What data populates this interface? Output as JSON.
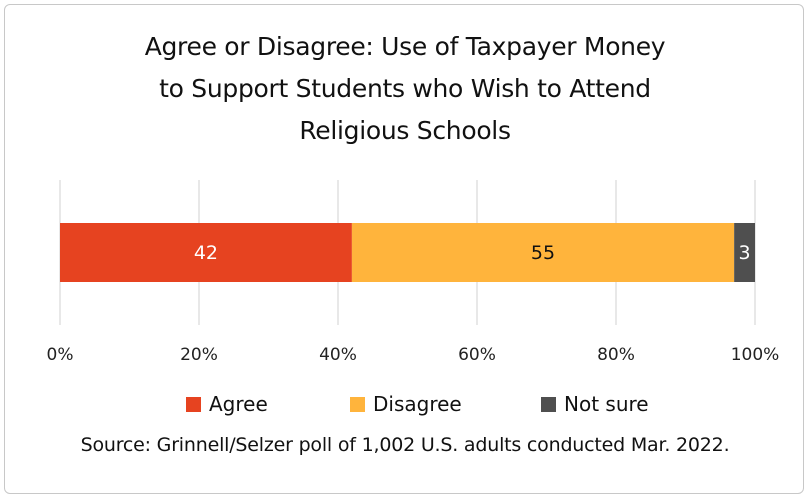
{
  "chart_data": {
    "type": "bar",
    "orientation": "horizontal",
    "stacked": true,
    "title_lines": [
      "Agree or Disagree: Use of Taxpayer Money",
      "to Support Students who Wish to Attend",
      "Religious Schools"
    ],
    "xlim": [
      0,
      100
    ],
    "x_ticks": [
      "0%",
      "20%",
      "40%",
      "60%",
      "80%",
      "100%"
    ],
    "grid": true,
    "legend_position": "bottom",
    "series": [
      {
        "name": "Agree",
        "value": 42,
        "label": "42",
        "color": "#E64320",
        "label_color": "#ffffff"
      },
      {
        "name": "Disagree",
        "value": 55,
        "label": "55",
        "color": "#FFB43C",
        "label_color": "#111111"
      },
      {
        "name": "Not sure",
        "value": 3,
        "label": "3",
        "color": "#4F4F4F",
        "label_color": "#ffffff"
      }
    ],
    "source": "Source: Grinnell/Selzer poll of 1,002 U.S. adults conducted Mar. 2022."
  }
}
